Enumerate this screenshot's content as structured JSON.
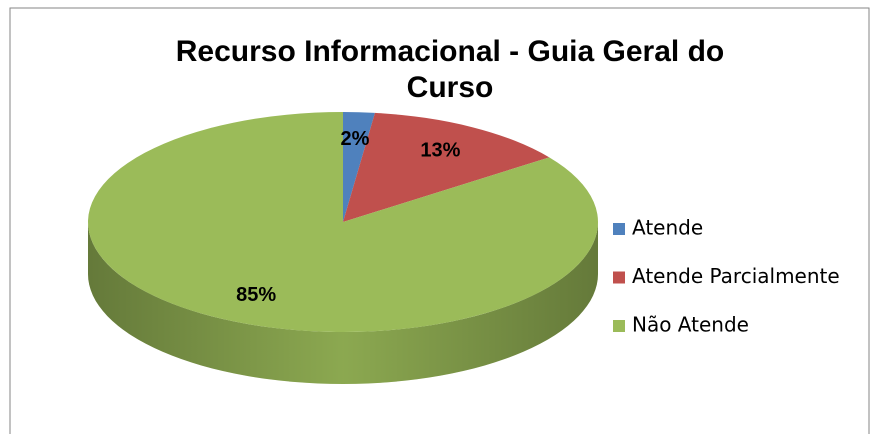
{
  "chart_data": {
    "type": "pie",
    "title": "Recurso Informacional - Guia Geral do Curso",
    "categories": [
      "Atende",
      "Atende Parcialmente",
      "Não Atende"
    ],
    "values": [
      2,
      13,
      85
    ],
    "value_labels": [
      "2%",
      "13%",
      "85%"
    ],
    "colors": [
      "#4f81bd",
      "#c0504d",
      "#9bbb59"
    ],
    "legend": "right"
  }
}
